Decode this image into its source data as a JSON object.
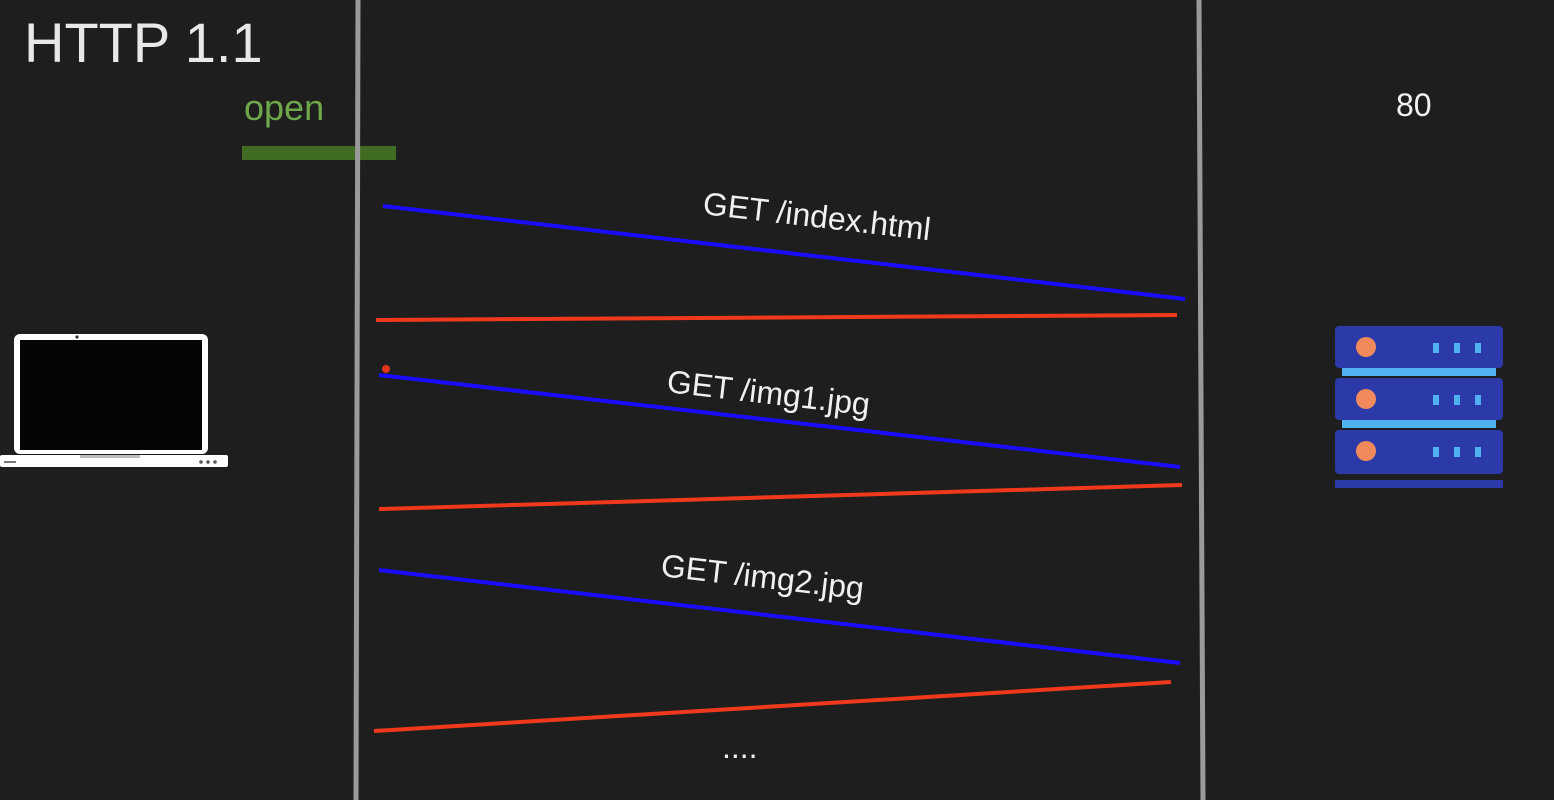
{
  "title": "HTTP 1.1",
  "connection_state": "open",
  "server_port": "80",
  "requests": [
    {
      "label": "GET /index.html"
    },
    {
      "label": "GET /img1.jpg"
    },
    {
      "label": "GET /img2.jpg"
    }
  ],
  "continuation": "....",
  "colors": {
    "background": "#1e1e1e",
    "request_arrow": "#1a0cff",
    "response_arrow": "#f0391c",
    "open_bar": "#3f6b22",
    "open_text": "#6ea84a",
    "lifeline": "#9a9a9a",
    "server": "#2b3aa8",
    "server_accent": "#4fb1f0",
    "server_led": "#f08a5d"
  },
  "icons": {
    "client": "laptop-icon",
    "server": "server-rack-icon"
  }
}
